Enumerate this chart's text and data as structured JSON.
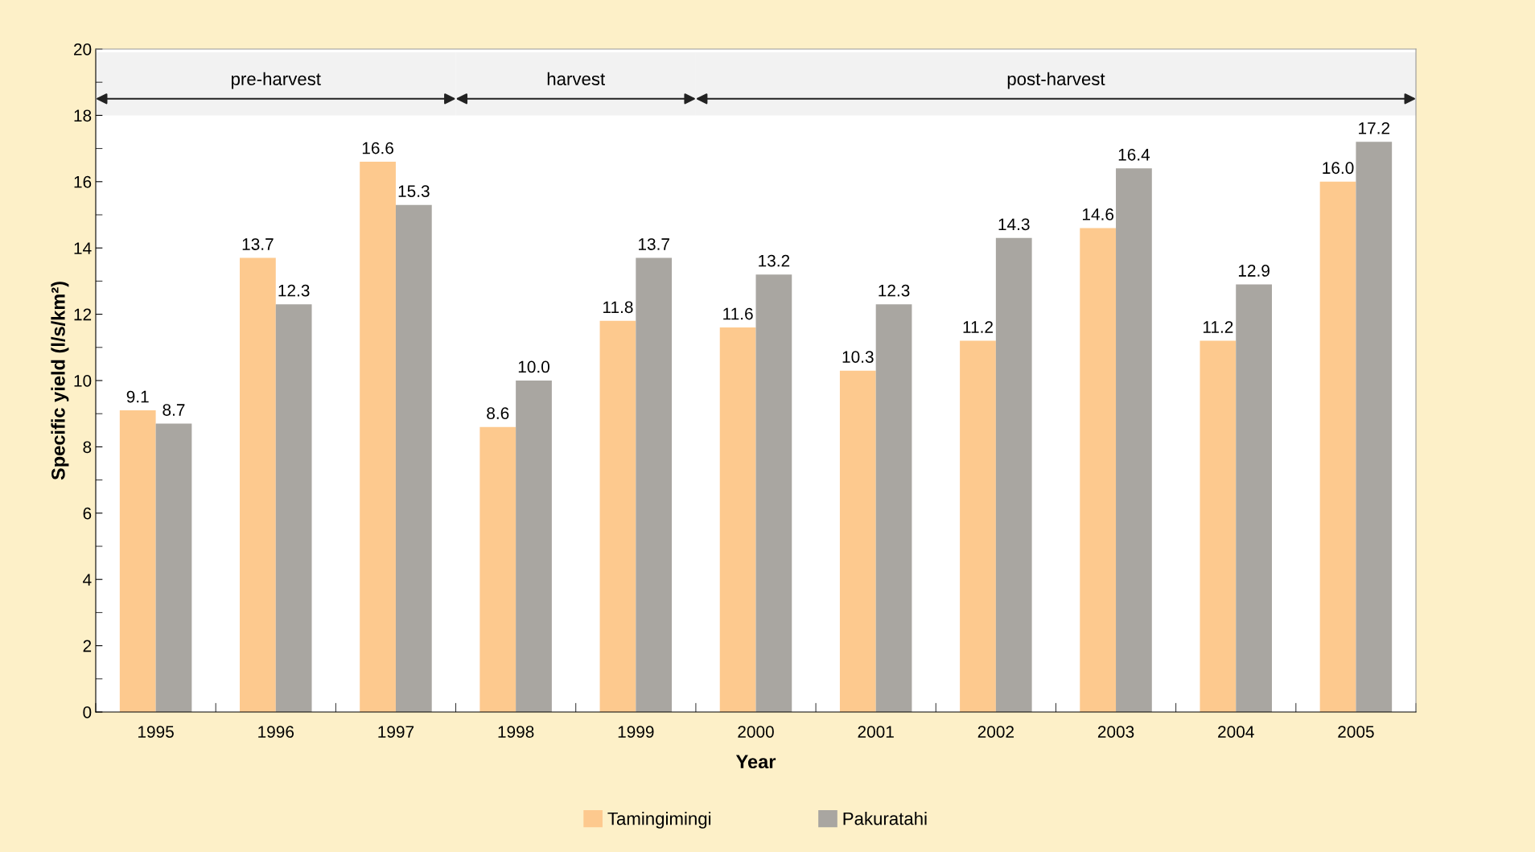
{
  "chart_data": {
    "type": "bar",
    "xlabel": "Year",
    "ylabel": "Specific yield (l/s/km²)",
    "categories": [
      "1995",
      "1996",
      "1997",
      "1998",
      "1999",
      "2000",
      "2001",
      "2002",
      "2003",
      "2004",
      "2005"
    ],
    "series": [
      {
        "name": "Tamingimingi",
        "color": "#fdc98e",
        "values": [
          9.1,
          13.7,
          16.6,
          8.6,
          11.8,
          11.6,
          10.3,
          11.2,
          14.6,
          11.2,
          16.0
        ]
      },
      {
        "name": "Pakuratahi",
        "color": "#a9a6a1",
        "values": [
          8.7,
          12.3,
          15.3,
          10.0,
          13.7,
          13.2,
          12.3,
          14.3,
          16.4,
          12.9,
          17.2
        ]
      }
    ],
    "value_labels": [
      [
        "9.1",
        "13.7",
        "16.6",
        "8.6",
        "11.8",
        "11.6",
        "10.3",
        "11.2",
        "14.6",
        "11.2",
        "16.0"
      ],
      [
        "8.7",
        "12.3",
        "15.3",
        "10.0",
        "13.7",
        "13.2",
        "12.3",
        "14.3",
        "16.4",
        "12.9",
        "17.2"
      ]
    ],
    "bands": [
      {
        "axis": "x",
        "from": "1995",
        "to": "1997",
        "label": "pre-harvest",
        "color": "#f2f2f2"
      },
      {
        "axis": "x",
        "from": "1998",
        "to": "1999",
        "label": "harvest",
        "color": "#f2f2f2"
      },
      {
        "axis": "x",
        "from": "2000",
        "to": "2005",
        "label": "post-harvest",
        "color": "#f2f2f2"
      }
    ],
    "ylim": [
      0,
      20
    ],
    "yticks": [
      0,
      2,
      4,
      6,
      8,
      10,
      12,
      14,
      16,
      18,
      20
    ],
    "grid": false,
    "legend": "bottom"
  }
}
